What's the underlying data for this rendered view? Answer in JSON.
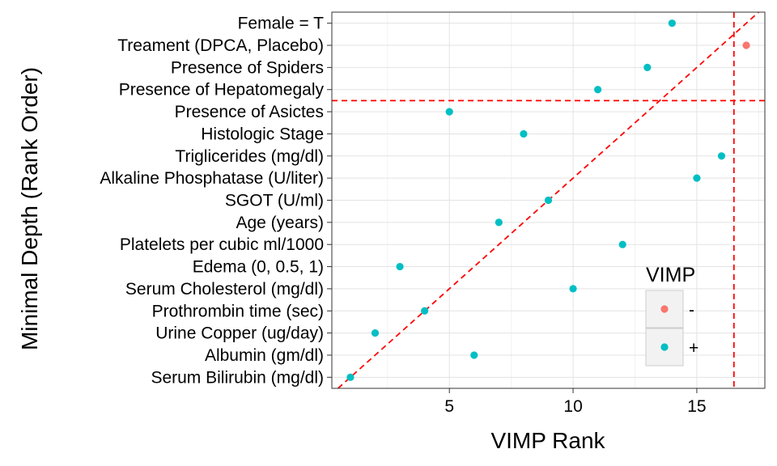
{
  "chart_data": {
    "type": "scatter",
    "title": "",
    "xlabel": "VIMP Rank",
    "ylabel": "Minimal Depth (Rank Order)",
    "xlim": [
      0.25,
      17.75
    ],
    "ylim": [
      0.5,
      17.5
    ],
    "xticks": [
      5,
      10,
      15
    ],
    "grid": true,
    "legend": {
      "title": "VIMP",
      "position": "right",
      "entries": [
        {
          "key": "-",
          "label": "-",
          "color": "#F8766D"
        },
        {
          "key": "+",
          "label": "+",
          "color": "#00BFC4"
        }
      ]
    },
    "categories": [
      "Serum Bilirubin (mg/dl)",
      "Albumin (gm/dl)",
      "Urine Copper (ug/day)",
      "Prothrombin time (sec)",
      "Serum Cholesterol (mg/dl)",
      "Edema (0, 0.5, 1)",
      "Platelets per cubic ml/1000",
      "Age (years)",
      "SGOT (U/ml)",
      "Alkaline Phosphatase (U/liter)",
      "Triglicerides (mg/dl)",
      "Histologic Stage",
      "Presence of Asictes",
      "Presence of Hepatomegaly",
      "Presence of Spiders",
      "Treament (DPCA, Placebo)",
      "Female = T"
    ],
    "points": [
      {
        "label": "Serum Bilirubin (mg/dl)",
        "x": 1,
        "y": 1,
        "vimp": "+"
      },
      {
        "label": "Albumin (gm/dl)",
        "x": 6,
        "y": 2,
        "vimp": "+"
      },
      {
        "label": "Urine Copper (ug/day)",
        "x": 2,
        "y": 3,
        "vimp": "+"
      },
      {
        "label": "Prothrombin time (sec)",
        "x": 4,
        "y": 4,
        "vimp": "+"
      },
      {
        "label": "Serum Cholesterol (mg/dl)",
        "x": 10,
        "y": 5,
        "vimp": "+"
      },
      {
        "label": "Edema (0, 0.5, 1)",
        "x": 3,
        "y": 6,
        "vimp": "+"
      },
      {
        "label": "Platelets per cubic ml/1000",
        "x": 12,
        "y": 7,
        "vimp": "+"
      },
      {
        "label": "Age (years)",
        "x": 7,
        "y": 8,
        "vimp": "+"
      },
      {
        "label": "SGOT (U/ml)",
        "x": 9,
        "y": 9,
        "vimp": "+"
      },
      {
        "label": "Alkaline Phosphatase (U/liter)",
        "x": 15,
        "y": 10,
        "vimp": "+"
      },
      {
        "label": "Triglicerides (mg/dl)",
        "x": 16,
        "y": 11,
        "vimp": "+"
      },
      {
        "label": "Histologic Stage",
        "x": 8,
        "y": 12,
        "vimp": "+"
      },
      {
        "label": "Presence of Asictes",
        "x": 5,
        "y": 13,
        "vimp": "+"
      },
      {
        "label": "Presence of Hepatomegaly",
        "x": 11,
        "y": 14,
        "vimp": "+"
      },
      {
        "label": "Presence of Spiders",
        "x": 13,
        "y": 15,
        "vimp": "+"
      },
      {
        "label": "Treament (DPCA, Placebo)",
        "x": 17,
        "y": 16,
        "vimp": "-"
      },
      {
        "label": "Female = T",
        "x": 14,
        "y": 17,
        "vimp": "+"
      }
    ],
    "reference_lines": {
      "diagonal": {
        "slope": 1,
        "intercept": 0,
        "color": "#FF0000",
        "style": "dashed"
      },
      "vertical_x": 16.5,
      "horizontal_y": 13.5,
      "color": "#FF0000"
    }
  }
}
